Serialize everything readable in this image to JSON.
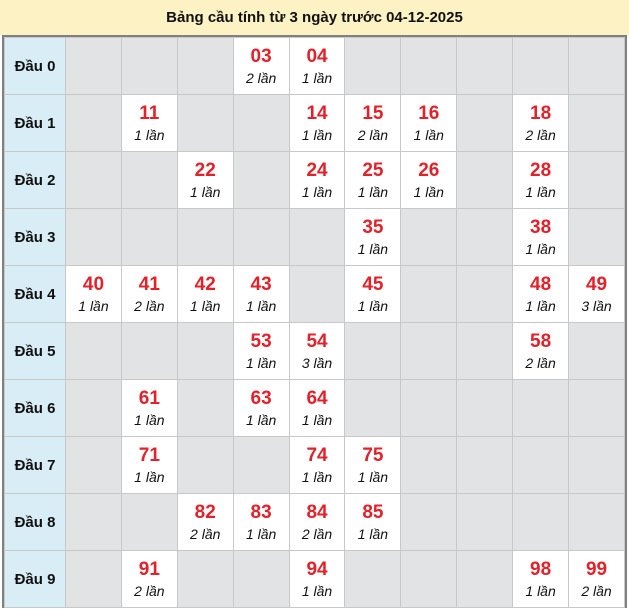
{
  "title": "Bảng cầu tính từ 3 ngày trước 04-12-2025",
  "colors": {
    "number": "#e3212b",
    "header_bg": "#fdf2c3",
    "row_head_bg": "#d9edf7",
    "empty_cell": "#e2e3e5",
    "filled_cell": "#ffffff"
  },
  "rows": [
    {
      "label": "Đầu 0",
      "cells": [
        null,
        null,
        null,
        {
          "n": "03",
          "c": "2 lần"
        },
        {
          "n": "04",
          "c": "1 lần"
        },
        null,
        null,
        null,
        null,
        null
      ]
    },
    {
      "label": "Đầu 1",
      "cells": [
        null,
        {
          "n": "11",
          "c": "1 lần"
        },
        null,
        null,
        {
          "n": "14",
          "c": "1 lần"
        },
        {
          "n": "15",
          "c": "2 lần"
        },
        {
          "n": "16",
          "c": "1 lần"
        },
        null,
        {
          "n": "18",
          "c": "2 lần"
        },
        null
      ]
    },
    {
      "label": "Đầu 2",
      "cells": [
        null,
        null,
        {
          "n": "22",
          "c": "1 lần"
        },
        null,
        {
          "n": "24",
          "c": "1 lần"
        },
        {
          "n": "25",
          "c": "1 lần"
        },
        {
          "n": "26",
          "c": "1 lần"
        },
        null,
        {
          "n": "28",
          "c": "1 lần"
        },
        null
      ]
    },
    {
      "label": "Đầu 3",
      "cells": [
        null,
        null,
        null,
        null,
        null,
        {
          "n": "35",
          "c": "1 lần"
        },
        null,
        null,
        {
          "n": "38",
          "c": "1 lần"
        },
        null
      ]
    },
    {
      "label": "Đầu 4",
      "cells": [
        {
          "n": "40",
          "c": "1 lần"
        },
        {
          "n": "41",
          "c": "2 lần"
        },
        {
          "n": "42",
          "c": "1 lần"
        },
        {
          "n": "43",
          "c": "1 lần"
        },
        null,
        {
          "n": "45",
          "c": "1 lần"
        },
        null,
        null,
        {
          "n": "48",
          "c": "1 lần"
        },
        {
          "n": "49",
          "c": "3 lần"
        }
      ]
    },
    {
      "label": "Đầu 5",
      "cells": [
        null,
        null,
        null,
        {
          "n": "53",
          "c": "1 lần"
        },
        {
          "n": "54",
          "c": "3 lần"
        },
        null,
        null,
        null,
        {
          "n": "58",
          "c": "2 lần"
        },
        null
      ]
    },
    {
      "label": "Đầu 6",
      "cells": [
        null,
        {
          "n": "61",
          "c": "1 lần"
        },
        null,
        {
          "n": "63",
          "c": "1 lần"
        },
        {
          "n": "64",
          "c": "1 lần"
        },
        null,
        null,
        null,
        null,
        null
      ]
    },
    {
      "label": "Đầu 7",
      "cells": [
        null,
        {
          "n": "71",
          "c": "1 lần"
        },
        null,
        null,
        {
          "n": "74",
          "c": "1 lần"
        },
        {
          "n": "75",
          "c": "1 lần"
        },
        null,
        null,
        null,
        null
      ]
    },
    {
      "label": "Đầu 8",
      "cells": [
        null,
        null,
        {
          "n": "82",
          "c": "2 lần"
        },
        {
          "n": "83",
          "c": "1 lần"
        },
        {
          "n": "84",
          "c": "2 lần"
        },
        {
          "n": "85",
          "c": "1 lần"
        },
        null,
        null,
        null,
        null
      ]
    },
    {
      "label": "Đầu 9",
      "cells": [
        null,
        {
          "n": "91",
          "c": "2 lần"
        },
        null,
        null,
        {
          "n": "94",
          "c": "1 lần"
        },
        null,
        null,
        null,
        {
          "n": "98",
          "c": "1 lần"
        },
        {
          "n": "99",
          "c": "2 lần"
        }
      ]
    }
  ]
}
